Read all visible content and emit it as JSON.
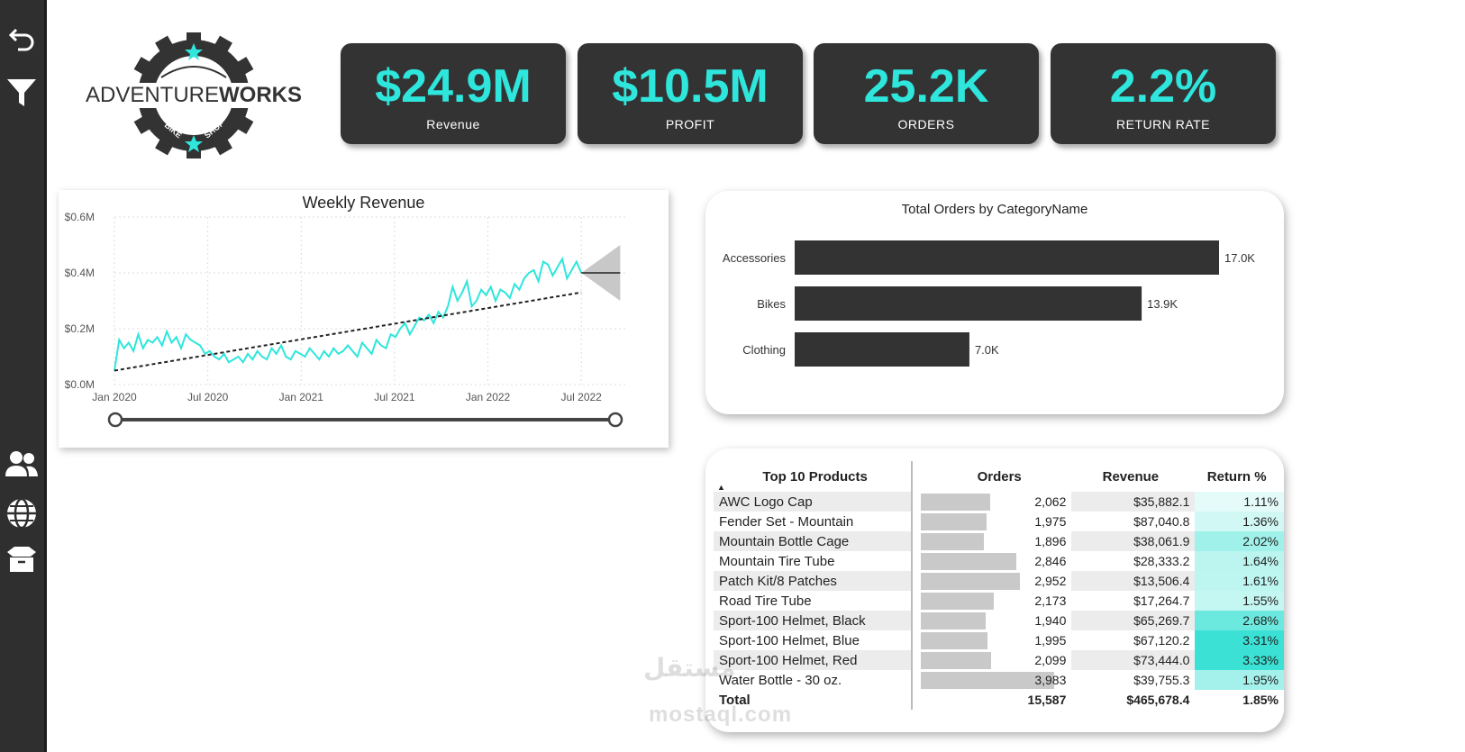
{
  "nav": {
    "icons": [
      "back-arrow-icon",
      "filter-icon",
      "users-icon",
      "globe-icon",
      "box-icon"
    ]
  },
  "logo": {
    "brand_left": "ADVENTURE",
    "brand_right": "WORKS",
    "sub_left": "BIKE",
    "sub_right": "SHOP"
  },
  "kpis": [
    {
      "value": "$24.9M",
      "label": "Revenue"
    },
    {
      "value": "$10.5M",
      "label": "PROFIT"
    },
    {
      "value": "25.2K",
      "label": "ORDERS"
    },
    {
      "value": "2.2%",
      "label": "RETURN RATE"
    }
  ],
  "colors": {
    "accent": "#2ee6dc",
    "dark": "#333333",
    "bar": "#333333"
  },
  "weekly_chart": {
    "chart_data": {
      "type": "line",
      "title": "Weekly Revenue",
      "y_ticks": [
        "$0.0M",
        "$0.2M",
        "$0.4M",
        "$0.6M"
      ],
      "x_ticks": [
        "Jan 2020",
        "Jul 2020",
        "Jan 2021",
        "Jul 2021",
        "Jan 2022",
        "Jul 2022"
      ],
      "ylim": [
        0,
        0.6
      ],
      "xlim": [
        0,
        30
      ],
      "series_values": [
        0.05,
        0.16,
        0.13,
        0.15,
        0.12,
        0.18,
        0.13,
        0.16,
        0.15,
        0.17,
        0.14,
        0.19,
        0.15,
        0.17,
        0.13,
        0.18,
        0.16,
        0.15,
        0.14,
        0.11,
        0.12,
        0.1,
        0.09,
        0.11,
        0.08,
        0.09,
        0.1,
        0.08,
        0.11,
        0.09,
        0.12,
        0.1,
        0.09,
        0.13,
        0.11,
        0.14,
        0.1,
        0.09,
        0.12,
        0.11,
        0.1,
        0.13,
        0.11,
        0.09,
        0.12,
        0.1,
        0.13,
        0.11,
        0.12,
        0.14,
        0.12,
        0.1,
        0.15,
        0.13,
        0.11,
        0.16,
        0.14,
        0.13,
        0.18,
        0.17,
        0.2,
        0.22,
        0.18,
        0.21,
        0.24,
        0.23,
        0.25,
        0.22,
        0.26,
        0.24,
        0.28,
        0.35,
        0.3,
        0.33,
        0.37,
        0.28,
        0.3,
        0.34,
        0.32,
        0.35,
        0.3,
        0.34,
        0.33,
        0.31,
        0.36,
        0.34,
        0.38,
        0.4,
        0.41,
        0.37,
        0.44,
        0.43,
        0.39,
        0.42,
        0.45,
        0.38,
        0.41,
        0.44,
        0.4
      ],
      "trend": [
        [
          0,
          0.05
        ],
        [
          30,
          0.33
        ]
      ],
      "forecast": {
        "start_x": 30,
        "end_x": 32.5,
        "value": 0.4,
        "upper": 0.5,
        "lower": 0.3
      }
    }
  },
  "orders_chart": {
    "chart_data": {
      "type": "bar",
      "orientation": "horizontal",
      "title": "Total Orders by CategoryName",
      "categories": [
        "Accessories",
        "Bikes",
        "Clothing"
      ],
      "values": [
        17.0,
        13.9,
        7.0
      ],
      "labels": [
        "17.0K",
        "13.9K",
        "7.0K"
      ],
      "xlim": [
        0,
        17.0
      ]
    }
  },
  "products": {
    "headers": [
      "Top 10 Products",
      "Orders",
      "Revenue",
      "Return %"
    ],
    "sort_indicator": "▲",
    "max_orders": 3983,
    "rows": [
      {
        "name": "AWC Logo Cap",
        "orders": 2062,
        "orders_text": "2,062",
        "revenue": "$35,882.1",
        "return_text": "1.11%",
        "return": 1.11
      },
      {
        "name": "Fender Set - Mountain",
        "orders": 1975,
        "orders_text": "1,975",
        "revenue": "$87,040.8",
        "return_text": "1.36%",
        "return": 1.36
      },
      {
        "name": "Mountain Bottle Cage",
        "orders": 1896,
        "orders_text": "1,896",
        "revenue": "$38,061.9",
        "return_text": "2.02%",
        "return": 2.02
      },
      {
        "name": "Mountain Tire Tube",
        "orders": 2846,
        "orders_text": "2,846",
        "revenue": "$28,333.2",
        "return_text": "1.64%",
        "return": 1.64
      },
      {
        "name": "Patch Kit/8 Patches",
        "orders": 2952,
        "orders_text": "2,952",
        "revenue": "$13,506.4",
        "return_text": "1.61%",
        "return": 1.61
      },
      {
        "name": "Road Tire Tube",
        "orders": 2173,
        "orders_text": "2,173",
        "revenue": "$17,264.7",
        "return_text": "1.55%",
        "return": 1.55
      },
      {
        "name": "Sport-100 Helmet, Black",
        "orders": 1940,
        "orders_text": "1,940",
        "revenue": "$65,269.7",
        "return_text": "2.68%",
        "return": 2.68
      },
      {
        "name": "Sport-100 Helmet, Blue",
        "orders": 1995,
        "orders_text": "1,995",
        "revenue": "$67,120.2",
        "return_text": "3.31%",
        "return": 3.31
      },
      {
        "name": "Sport-100 Helmet, Red",
        "orders": 2099,
        "orders_text": "2,099",
        "revenue": "$73,444.0",
        "return_text": "3.33%",
        "return": 3.33
      },
      {
        "name": "Water Bottle - 30 oz.",
        "orders": 3983,
        "orders_text": "3,983",
        "revenue": "$39,755.3",
        "return_text": "1.95%",
        "return": 1.95
      }
    ],
    "total": {
      "label": "Total",
      "orders": "15,587",
      "revenue": "$465,678.4",
      "return": "1.85%"
    }
  },
  "watermark": {
    "arabic": "مستقل",
    "latin": "mostaql.com"
  }
}
